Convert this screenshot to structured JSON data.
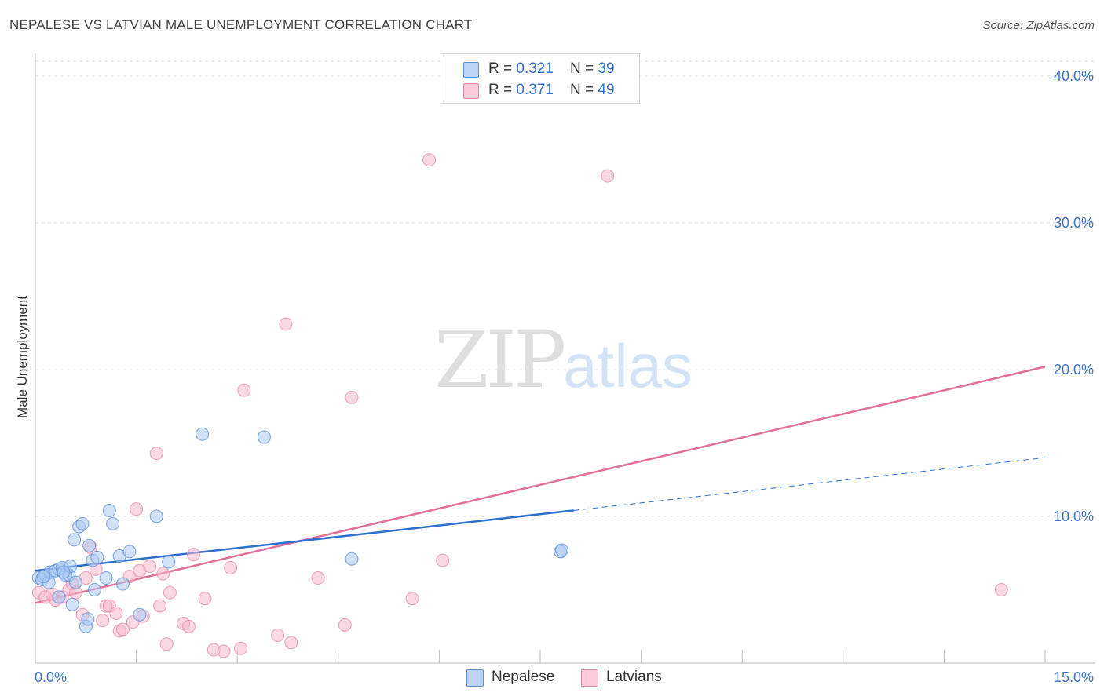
{
  "header": {
    "title": "NEPALESE VS LATVIAN MALE UNEMPLOYMENT CORRELATION CHART",
    "source": "Source: ZipAtlas.com"
  },
  "watermark": {
    "zip": "ZIP",
    "atlas": "atlas"
  },
  "legend": {
    "nepalese": {
      "r_label": "R = ",
      "r_value": "0.321",
      "n_label": "N = ",
      "n_value": "39"
    },
    "latvians": {
      "r_label": "R = ",
      "r_value": "0.371",
      "n_label": "N = ",
      "n_value": "49"
    }
  },
  "bottom_legend": {
    "nepalese": "Nepalese",
    "latvians": "Latvians"
  },
  "colors": {
    "nepalese_fill": "#a9c8f2",
    "nepalese_stroke": "#5b8fd8",
    "nepalese_line": "#2b6fd1",
    "latvians_fill": "#f6b8cc",
    "latvians_stroke": "#e889a8",
    "latvians_line": "#e0709a",
    "tick_text": "#3b74c9",
    "grid": "#dcdcdc"
  },
  "chart_data": {
    "type": "scatter",
    "title": "NEPALESE VS LATVIAN MALE UNEMPLOYMENT CORRELATION CHART",
    "xlabel": "",
    "ylabel": "Male Unemployment",
    "xlim": [
      0,
      15
    ],
    "ylim": [
      0,
      40
    ],
    "x_tick_labels": [
      "0.0%",
      "15.0%"
    ],
    "y_ticks": [
      10,
      20,
      30,
      40
    ],
    "y_tick_labels": [
      "10.0%",
      "20.0%",
      "30.0%",
      "40.0%"
    ],
    "grid": true,
    "legend_position": "top-center",
    "series": [
      {
        "name": "Nepalese",
        "points": [
          [
            0.05,
            5.8
          ],
          [
            0.1,
            5.7
          ],
          [
            0.15,
            6.0
          ],
          [
            0.2,
            5.5
          ],
          [
            0.22,
            6.2
          ],
          [
            0.3,
            6.3
          ],
          [
            0.35,
            4.5
          ],
          [
            0.35,
            6.4
          ],
          [
            0.4,
            6.5
          ],
          [
            0.45,
            6.0
          ],
          [
            0.5,
            6.0
          ],
          [
            0.52,
            6.6
          ],
          [
            0.55,
            4.0
          ],
          [
            0.58,
            8.4
          ],
          [
            0.6,
            5.5
          ],
          [
            0.65,
            9.3
          ],
          [
            0.7,
            9.5
          ],
          [
            0.75,
            2.5
          ],
          [
            0.78,
            3.0
          ],
          [
            0.8,
            8.0
          ],
          [
            0.85,
            7.0
          ],
          [
            0.88,
            5.0
          ],
          [
            0.92,
            7.2
          ],
          [
            1.05,
            5.8
          ],
          [
            1.1,
            10.4
          ],
          [
            1.15,
            9.5
          ],
          [
            1.25,
            7.3
          ],
          [
            1.3,
            5.4
          ],
          [
            1.4,
            7.6
          ],
          [
            1.55,
            3.3
          ],
          [
            1.8,
            10.0
          ],
          [
            1.98,
            6.9
          ],
          [
            2.48,
            15.6
          ],
          [
            3.4,
            15.4
          ],
          [
            4.7,
            7.1
          ],
          [
            7.8,
            7.6
          ],
          [
            7.82,
            7.7
          ],
          [
            0.12,
            5.9
          ],
          [
            0.42,
            6.2
          ]
        ]
      },
      {
        "name": "Latvians",
        "points": [
          [
            0.05,
            4.8
          ],
          [
            0.15,
            4.5
          ],
          [
            0.3,
            4.3
          ],
          [
            0.4,
            4.5
          ],
          [
            0.5,
            5.0
          ],
          [
            0.55,
            5.4
          ],
          [
            0.6,
            4.8
          ],
          [
            0.7,
            3.3
          ],
          [
            0.75,
            5.8
          ],
          [
            0.82,
            7.9
          ],
          [
            0.9,
            6.4
          ],
          [
            1.0,
            2.9
          ],
          [
            1.05,
            3.9
          ],
          [
            1.1,
            3.9
          ],
          [
            1.2,
            3.4
          ],
          [
            1.25,
            2.2
          ],
          [
            1.3,
            2.3
          ],
          [
            1.4,
            5.9
          ],
          [
            1.45,
            2.8
          ],
          [
            1.5,
            10.5
          ],
          [
            1.55,
            6.3
          ],
          [
            1.6,
            3.2
          ],
          [
            1.7,
            6.6
          ],
          [
            1.8,
            14.3
          ],
          [
            1.85,
            3.9
          ],
          [
            1.9,
            6.1
          ],
          [
            1.95,
            1.3
          ],
          [
            2.0,
            4.8
          ],
          [
            2.2,
            2.7
          ],
          [
            2.28,
            2.5
          ],
          [
            2.35,
            7.4
          ],
          [
            2.52,
            4.4
          ],
          [
            2.65,
            0.9
          ],
          [
            2.8,
            0.8
          ],
          [
            2.9,
            6.5
          ],
          [
            3.05,
            1.0
          ],
          [
            3.1,
            18.6
          ],
          [
            3.6,
            1.9
          ],
          [
            3.72,
            23.1
          ],
          [
            3.8,
            1.4
          ],
          [
            4.2,
            5.8
          ],
          [
            4.6,
            2.6
          ],
          [
            4.7,
            18.1
          ],
          [
            5.6,
            4.4
          ],
          [
            5.85,
            34.3
          ],
          [
            6.05,
            7.0
          ],
          [
            8.5,
            33.2
          ],
          [
            14.35,
            5.0
          ],
          [
            0.25,
            4.7
          ]
        ]
      }
    ],
    "trend_lines": [
      {
        "name": "Nepalese",
        "x_start": 0,
        "y_start": 6.3,
        "x_solid_end": 8.0,
        "x_end": 15,
        "y_end": 14.0
      },
      {
        "name": "Latvians",
        "x_start": 0,
        "y_start": 4.1,
        "x_end": 15,
        "y_end": 20.2
      }
    ]
  }
}
